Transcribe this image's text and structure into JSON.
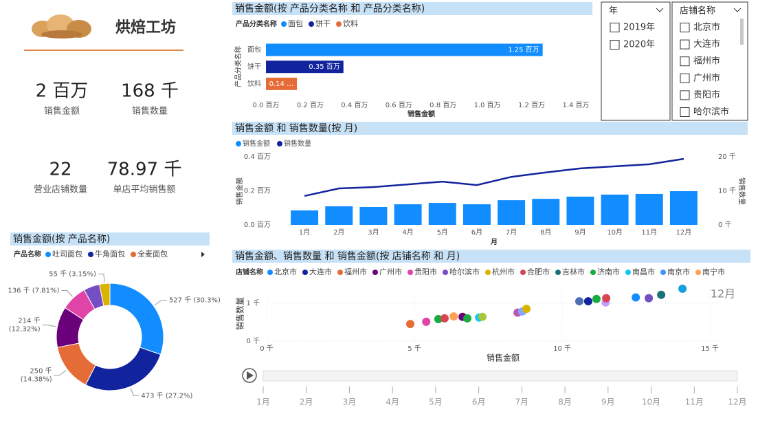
{
  "header": {
    "title": "烘焙工坊"
  },
  "kpis": [
    {
      "value": "2 百万",
      "label": "销售金额"
    },
    {
      "value": "168 千",
      "label": "销售数量"
    },
    {
      "value": "22",
      "label": "营业店铺数量"
    },
    {
      "value": "78.97 千",
      "label": "单店平均销售额"
    }
  ],
  "slicers": [
    {
      "title": "年",
      "items": [
        "2019年",
        "2020年"
      ]
    },
    {
      "title": "店铺名称",
      "items": [
        "北京市",
        "大连市",
        "福州市",
        "广州市",
        "贵阳市",
        "哈尔滨市"
      ]
    }
  ],
  "chart_data": [
    {
      "type": "pie",
      "donut": true,
      "title": "销售金额(按 产品名称)",
      "legend_title": "产品名称",
      "categories": [
        "吐司面包",
        "牛角面包",
        "全麦面包",
        null,
        null,
        null,
        null
      ],
      "values": [
        527,
        473,
        250,
        214,
        136,
        84,
        55
      ],
      "value_labels": [
        "527 千 (30.3%)",
        "473 千 (27.2%)",
        "250 千\n(14.38%)",
        "214 千\n(12.32%)",
        "136 千 (7.81%)",
        null,
        "55 千 (3.15%)"
      ],
      "colors": [
        "#118dff",
        "#12239e",
        "#e66c37",
        "#6b007b",
        "#e044a7",
        "#744ec2",
        "#d9b300"
      ]
    },
    {
      "type": "hbar",
      "title": "销售金额(按 产品分类名称 和 产品分类名称)",
      "legend_title": "产品分类名称",
      "categories": [
        "面包",
        "饼干",
        "饮料"
      ],
      "values": [
        1.25,
        0.35,
        0.14
      ],
      "value_labels": [
        "1.25 百万",
        "0.35 百万",
        "0.14 …"
      ],
      "colors": [
        "#118dff",
        "#12239e",
        "#e66c37"
      ],
      "xlim": [
        0,
        1.4
      ],
      "xticks": [
        {
          "value": 0,
          "label": "0.0 百万"
        },
        {
          "value": 0.2,
          "label": "0.2 百万"
        },
        {
          "value": 0.4,
          "label": "0.4 百万"
        },
        {
          "value": 0.6,
          "label": "0.6 百万"
        },
        {
          "value": 0.8,
          "label": "0.8 百万"
        },
        {
          "value": 1.0,
          "label": "1.0 百万"
        },
        {
          "value": 1.2,
          "label": "1.2 百万"
        },
        {
          "value": 1.4,
          "label": "1.4 百万"
        }
      ],
      "xlabel": "销售金额",
      "ylabel": "产品分类名称"
    },
    {
      "type": "bar+line",
      "title": "销售金额 和 销售数量(按 月)",
      "categories": [
        "1月",
        "2月",
        "3月",
        "4月",
        "5月",
        "6月",
        "7月",
        "8月",
        "9月",
        "10月",
        "11月",
        "12月"
      ],
      "series": [
        {
          "name": "销售金额",
          "color": "#118dff",
          "values": [
            0.085,
            0.109,
            0.105,
            0.121,
            0.129,
            0.121,
            0.145,
            0.153,
            0.166,
            0.178,
            0.182,
            0.198
          ]
        },
        {
          "name": "销售数量",
          "color": "#12239e",
          "axis": "y2",
          "values": [
            8.5,
            10.7,
            11.1,
            11.9,
            12.7,
            11.7,
            14.1,
            15.4,
            16.6,
            17.2,
            17.8,
            19.4
          ]
        }
      ],
      "ylim": [
        0,
        0.4
      ],
      "yticks": [
        {
          "value": 0,
          "label": "0.0 百万"
        },
        {
          "value": 0.2,
          "label": "0.2 百万"
        },
        {
          "value": 0.4,
          "label": "0.4 百万"
        }
      ],
      "y2lim": [
        0,
        20
      ],
      "y2ticks": [
        {
          "value": 0,
          "label": "0 千"
        },
        {
          "value": 10,
          "label": "10 千"
        },
        {
          "value": 20,
          "label": "20 千"
        }
      ],
      "xlabel": "月",
      "ylabel": "销售金额",
      "y2label": "销售数量"
    },
    {
      "type": "scatter",
      "title": "销售金额、销售数量 和 销售金额(按 店铺名称 和 月)",
      "legend_title": "店铺名称",
      "series": [
        {
          "name": "北京市",
          "color": "#118dff"
        },
        {
          "name": "大连市",
          "color": "#12239e"
        },
        {
          "name": "福州市",
          "color": "#e66c37"
        },
        {
          "name": "广州市",
          "color": "#6b007b"
        },
        {
          "name": "贵阳市",
          "color": "#e044a7"
        },
        {
          "name": "哈尔滨市",
          "color": "#744ec2"
        },
        {
          "name": "杭州市",
          "color": "#d9b300"
        },
        {
          "name": "合肥市",
          "color": "#d64550"
        },
        {
          "name": "吉林市",
          "color": "#197278"
        },
        {
          "name": "济南市",
          "color": "#1aab40"
        },
        {
          "name": "南昌市",
          "color": "#15c6f4"
        },
        {
          "name": "南京市",
          "color": "#4092ff"
        },
        {
          "name": "南宁市",
          "color": "#ffa058"
        }
      ],
      "x": [
        4.86,
        5.4,
        5.81,
        6.02,
        6.33,
        6.63,
        6.79,
        7.19,
        7.3,
        8.49,
        8.65,
        8.79,
        10.58,
        10.88,
        11.16,
        11.47,
        11.49,
        12.49,
        12.93,
        13.35,
        14.07
      ],
      "y": [
        0.45,
        0.51,
        0.58,
        0.6,
        0.65,
        0.64,
        0.6,
        0.62,
        0.64,
        0.75,
        0.78,
        0.85,
        1.05,
        1.05,
        1.11,
        1.02,
        1.13,
        1.15,
        1.13,
        1.22,
        1.38
      ],
      "point_colors": [
        "#e66c37",
        "#e044a7",
        "#1aab40",
        "#d64550",
        "#ffa058",
        "#6b007b",
        "#1aab40",
        "#15c6f4",
        "#a5c83a",
        "#b45ab8",
        "#8aa6ff",
        "#d9b300",
        "#4a6fb5",
        "#12239e",
        "#1aab40",
        "#c39bff",
        "#d64550",
        "#118dff",
        "#744ec2",
        "#197278",
        "#15a0e0"
      ],
      "xlim": [
        0,
        15.3
      ],
      "xticks": [
        {
          "value": 0,
          "label": "0 千"
        },
        {
          "value": 5,
          "label": "5 千"
        },
        {
          "value": 10,
          "label": "10 千"
        },
        {
          "value": 15,
          "label": "15 千"
        }
      ],
      "ylim": [
        0,
        1.45
      ],
      "yticks": [
        {
          "value": 0,
          "label": "0 千"
        },
        {
          "value": 1,
          "label": "1 千"
        }
      ],
      "grid": true,
      "annotation": "12月",
      "xlabel": "销售金额",
      "ylabel": "销售数量",
      "play_axis": [
        "1月",
        "2月",
        "3月",
        "4月",
        "5月",
        "6月",
        "7月",
        "8月",
        "9月",
        "10月",
        "11月",
        "12月"
      ]
    }
  ]
}
